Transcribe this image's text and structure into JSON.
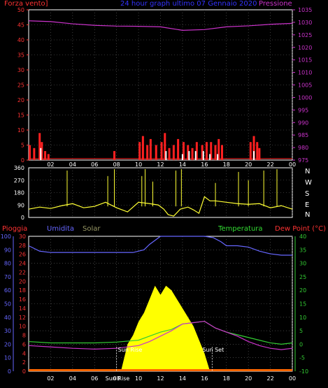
{
  "colors": {
    "background": "#000000",
    "wind": "#ff2020",
    "gust": "#ffffff",
    "pressure": "#cc33cc",
    "direction": "#ffff33",
    "humidity": "#6666ff",
    "solar": "#ffff00",
    "rain": "#ff3333",
    "temperature": "#33cc33",
    "dewpoint": "#cc33cc",
    "label_wind": "#ff3333",
    "label_title": "#3333ff",
    "label_temp": "#33dd33",
    "label_solar": "#999966",
    "grid": "#444444"
  },
  "header": {
    "wind_label": "Forza vento]",
    "title": "24 hour graph ultimo 07 Gennaio 2020",
    "pressure_label": "Pressione"
  },
  "bottom_header": {
    "rain_label": "Pioggia",
    "humidity_label": "Umidita",
    "solar_label": "Solar",
    "temp_label": "Temperatura",
    "dew_label": "Dew Point (°C)"
  },
  "compass": [
    "N",
    "W",
    "S",
    "E",
    "N"
  ],
  "markers": {
    "sunrise": "Sun Rise",
    "sunset": "Sun Set",
    "sunrise_short": "Sun Rise"
  },
  "chart_data": [
    {
      "type": "line",
      "name": "wind-pressure",
      "x_ticks": [
        "02",
        "04",
        "06",
        "08",
        "10",
        "12",
        "14",
        "16",
        "18",
        "20",
        "22",
        "00"
      ],
      "y_left_ticks": [
        0,
        5,
        10,
        15,
        20,
        25,
        30,
        35,
        40,
        45,
        50
      ],
      "y_right_ticks": [
        975,
        980,
        985,
        990,
        995,
        1000,
        1005,
        1010,
        1015,
        1020,
        1025,
        1030,
        1035
      ],
      "ylim_left": [
        0,
        50
      ],
      "ylim_right": [
        975,
        1035
      ],
      "pressure": [
        [
          0,
          1030.6
        ],
        [
          2,
          1030.3
        ],
        [
          4,
          1029.4
        ],
        [
          6,
          1028.8
        ],
        [
          8,
          1028.5
        ],
        [
          10,
          1028.4
        ],
        [
          12,
          1028.2
        ],
        [
          14,
          1026.8
        ],
        [
          16,
          1027.1
        ],
        [
          18,
          1028.2
        ],
        [
          20,
          1028.6
        ],
        [
          22,
          1029.2
        ],
        [
          24,
          1029.6
        ]
      ],
      "wind_bars": [
        [
          0.1,
          5
        ],
        [
          0.5,
          4
        ],
        [
          1.0,
          9
        ],
        [
          1.2,
          6
        ],
        [
          1.5,
          3
        ],
        [
          1.8,
          2
        ],
        [
          7.8,
          3
        ],
        [
          10.1,
          6
        ],
        [
          10.4,
          8
        ],
        [
          10.8,
          5
        ],
        [
          11.1,
          7
        ],
        [
          11.6,
          5
        ],
        [
          12.1,
          6
        ],
        [
          12.4,
          9
        ],
        [
          12.8,
          4
        ],
        [
          13.2,
          5
        ],
        [
          13.6,
          7
        ],
        [
          14.1,
          6
        ],
        [
          14.5,
          5
        ],
        [
          14.9,
          4
        ],
        [
          15.3,
          6
        ],
        [
          15.8,
          5
        ],
        [
          16.2,
          6
        ],
        [
          16.6,
          6
        ],
        [
          17.0,
          5
        ],
        [
          17.3,
          7
        ],
        [
          17.6,
          5
        ],
        [
          20.2,
          6
        ],
        [
          20.5,
          8
        ],
        [
          20.8,
          6
        ],
        [
          21.0,
          4
        ]
      ],
      "gust_bars": [
        [
          1.1,
          4
        ],
        [
          12.5,
          3
        ],
        [
          14.0,
          2
        ],
        [
          14.6,
          3
        ],
        [
          15.2,
          3
        ],
        [
          15.9,
          3
        ],
        [
          16.5,
          2
        ],
        [
          17.2,
          2
        ],
        [
          20.5,
          3
        ]
      ]
    },
    {
      "type": "scatter",
      "name": "wind-direction",
      "y_ticks": [
        0,
        90,
        180,
        270,
        360
      ],
      "ylim": [
        0,
        360
      ],
      "direction": [
        [
          0,
          60
        ],
        [
          1,
          75
        ],
        [
          2,
          65
        ],
        [
          3,
          85
        ],
        [
          4,
          100
        ],
        [
          5,
          70
        ],
        [
          6,
          80
        ],
        [
          7,
          110
        ],
        [
          8,
          70
        ],
        [
          9,
          40
        ],
        [
          10,
          110
        ],
        [
          11,
          100
        ],
        [
          11.8,
          90
        ],
        [
          12.3,
          60
        ],
        [
          12.7,
          20
        ],
        [
          13.2,
          10
        ],
        [
          13.8,
          60
        ],
        [
          14.5,
          75
        ],
        [
          15.0,
          55
        ],
        [
          15.5,
          30
        ],
        [
          16.0,
          150
        ],
        [
          16.5,
          120
        ],
        [
          17,
          120
        ],
        [
          18,
          110
        ],
        [
          19,
          100
        ],
        [
          20,
          95
        ],
        [
          21,
          100
        ],
        [
          22,
          70
        ],
        [
          23,
          85
        ],
        [
          24,
          60
        ]
      ],
      "spikes": [
        [
          3.5,
          340
        ],
        [
          7.2,
          300
        ],
        [
          7.8,
          350
        ],
        [
          10.3,
          300
        ],
        [
          10.6,
          350
        ],
        [
          11.3,
          260
        ],
        [
          13.4,
          340
        ],
        [
          13.9,
          350
        ],
        [
          17.0,
          250
        ],
        [
          19.1,
          330
        ],
        [
          20.0,
          270
        ],
        [
          21.4,
          340
        ],
        [
          22.6,
          350
        ]
      ]
    },
    {
      "type": "line",
      "name": "rain-humidity-temperature",
      "y_left_ticks": [
        0,
        10,
        20,
        30,
        40,
        50,
        60,
        70,
        80,
        90,
        100
      ],
      "y_left2_ticks": [
        0,
        2,
        4,
        6,
        8,
        10,
        12,
        14,
        16,
        18,
        20,
        22,
        24,
        26,
        28,
        30
      ],
      "y_right_ticks": [
        -10,
        -5,
        0,
        5,
        10,
        15,
        20,
        25,
        30,
        35,
        40
      ],
      "ylim_left": [
        0,
        100
      ],
      "ylim_right": [
        -10,
        40
      ],
      "humidity": [
        [
          0,
          93
        ],
        [
          1,
          89
        ],
        [
          2,
          88
        ],
        [
          4,
          88
        ],
        [
          6,
          88
        ],
        [
          8,
          88
        ],
        [
          9.5,
          88
        ],
        [
          10.5,
          90
        ],
        [
          11,
          94
        ],
        [
          12,
          100
        ],
        [
          14,
          100
        ],
        [
          16,
          100
        ],
        [
          16.8,
          99
        ],
        [
          17.5,
          96
        ],
        [
          18,
          93
        ],
        [
          19,
          93
        ],
        [
          20,
          92
        ],
        [
          21,
          89
        ],
        [
          22,
          87
        ],
        [
          23,
          86
        ],
        [
          24,
          86
        ]
      ],
      "temperature": [
        [
          0,
          1.0
        ],
        [
          2,
          0.5
        ],
        [
          4,
          0.5
        ],
        [
          6,
          0.5
        ],
        [
          8,
          0.8
        ],
        [
          10,
          1.5
        ],
        [
          11,
          3.0
        ],
        [
          12,
          4.5
        ],
        [
          13,
          5.5
        ],
        [
          14,
          7.5
        ],
        [
          15,
          8.0
        ],
        [
          16,
          8.5
        ],
        [
          17,
          6.0
        ],
        [
          18,
          4.5
        ],
        [
          19,
          3.5
        ],
        [
          20,
          2.5
        ],
        [
          21,
          1.5
        ],
        [
          22,
          0.5
        ],
        [
          23,
          0.0
        ],
        [
          24,
          0.5
        ]
      ],
      "dewpoint": [
        [
          0,
          -0.5
        ],
        [
          2,
          -1.0
        ],
        [
          4,
          -1.5
        ],
        [
          6,
          -1.8
        ],
        [
          8,
          -1.5
        ],
        [
          10,
          -0.5
        ],
        [
          11,
          1.0
        ],
        [
          12,
          3.0
        ],
        [
          13,
          5.0
        ],
        [
          14,
          7.5
        ],
        [
          15,
          8.0
        ],
        [
          16,
          8.5
        ],
        [
          17,
          6.0
        ],
        [
          18,
          4.5
        ],
        [
          19,
          3.0
        ],
        [
          20,
          1.0
        ],
        [
          21,
          -0.5
        ],
        [
          22,
          -1.5
        ],
        [
          23,
          -2.0
        ],
        [
          24,
          -1.5
        ]
      ],
      "solar": [
        [
          8.4,
          0
        ],
        [
          8.6,
          2
        ],
        [
          9.0,
          6
        ],
        [
          9.5,
          8
        ],
        [
          10.0,
          11
        ],
        [
          10.5,
          13
        ],
        [
          11.0,
          16
        ],
        [
          11.5,
          19
        ],
        [
          12.0,
          17
        ],
        [
          12.5,
          19
        ],
        [
          13.0,
          18
        ],
        [
          13.5,
          16
        ],
        [
          14.0,
          14
        ],
        [
          14.5,
          12
        ],
        [
          15.0,
          10
        ],
        [
          15.5,
          7
        ],
        [
          16.0,
          4
        ],
        [
          16.5,
          0
        ]
      ],
      "sunrise_hour": 8.0,
      "sunset_hour": 16.7
    }
  ]
}
